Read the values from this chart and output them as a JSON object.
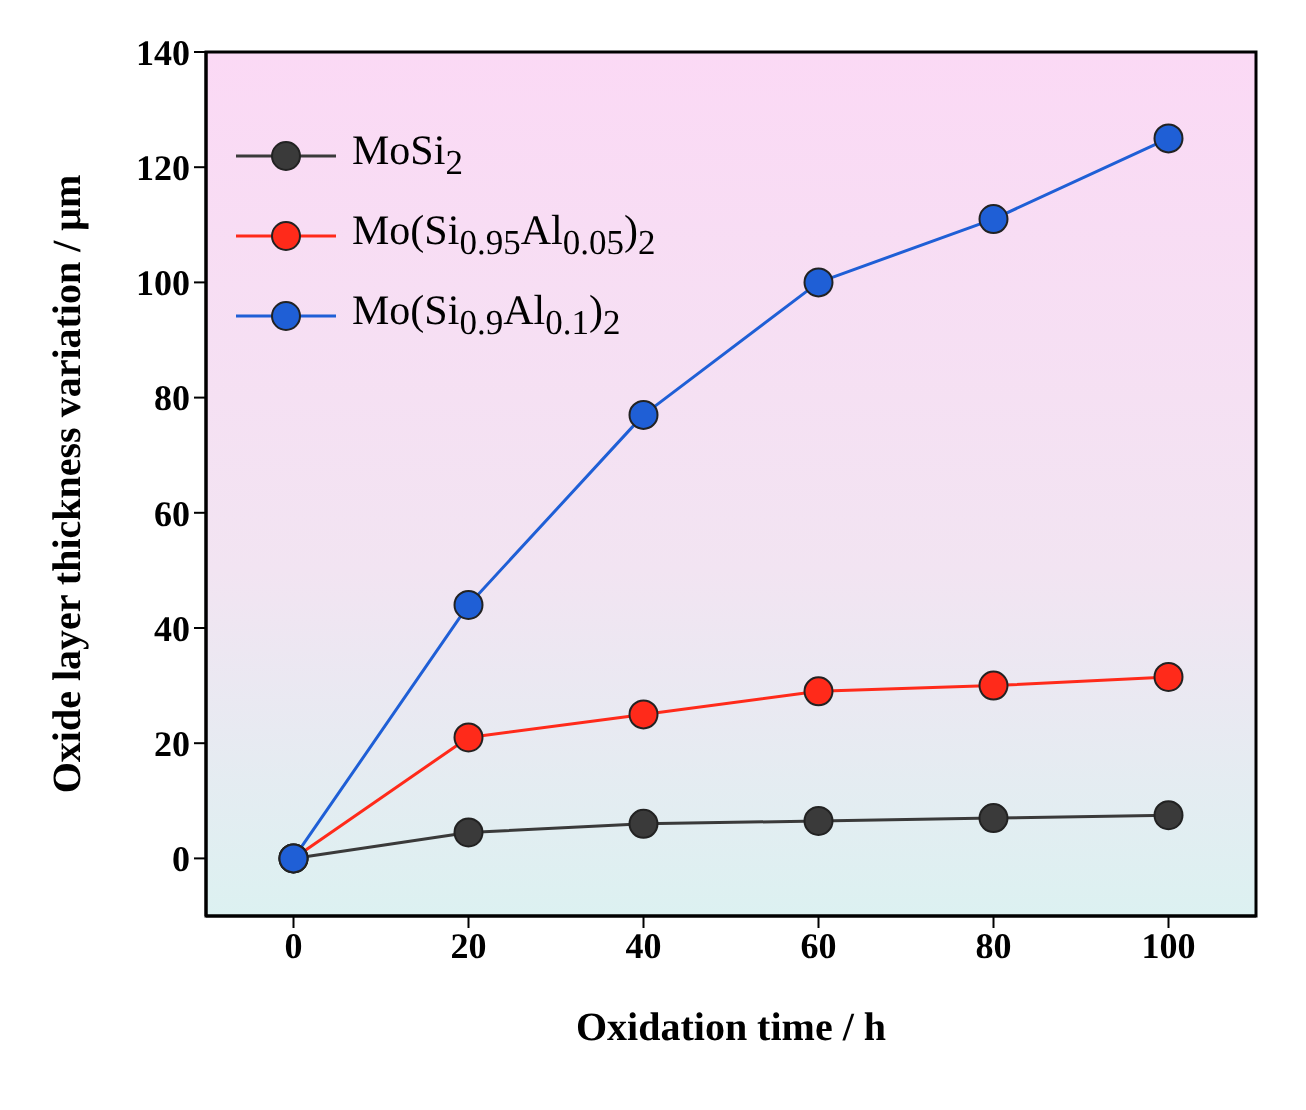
{
  "chart_data": {
    "type": "line",
    "xlabel": "Oxidation time / h",
    "ylabel": "Oxide layer thickness variation / μm",
    "x": [
      0,
      20,
      40,
      60,
      80,
      100
    ],
    "series": [
      {
        "name": "MoSi$_{2}$",
        "color": "#3a3a3a",
        "values": [
          0,
          4.5,
          6,
          6.5,
          7,
          7.5
        ]
      },
      {
        "name": "Mo(Si$_{0.95}$Al$_{0.05}$)$_{2}$",
        "color": "#ff2a1a",
        "values": [
          0,
          21,
          25,
          29,
          30,
          31.5
        ]
      },
      {
        "name": "Mo(Si$_{0.9}$Al$_{0.1}$)$_{2}$",
        "color": "#1f5fd6",
        "values": [
          0,
          44,
          77,
          100,
          111,
          125
        ]
      }
    ],
    "xlim": [
      -10,
      110
    ],
    "xticks": [
      0,
      20,
      40,
      60,
      80,
      100
    ],
    "ylim": [
      -10,
      140
    ],
    "yticks": [
      0,
      20,
      40,
      60,
      80,
      100,
      120,
      140
    ],
    "grid": false,
    "legend": "top left",
    "marker": "circle",
    "line_style": "solid"
  }
}
